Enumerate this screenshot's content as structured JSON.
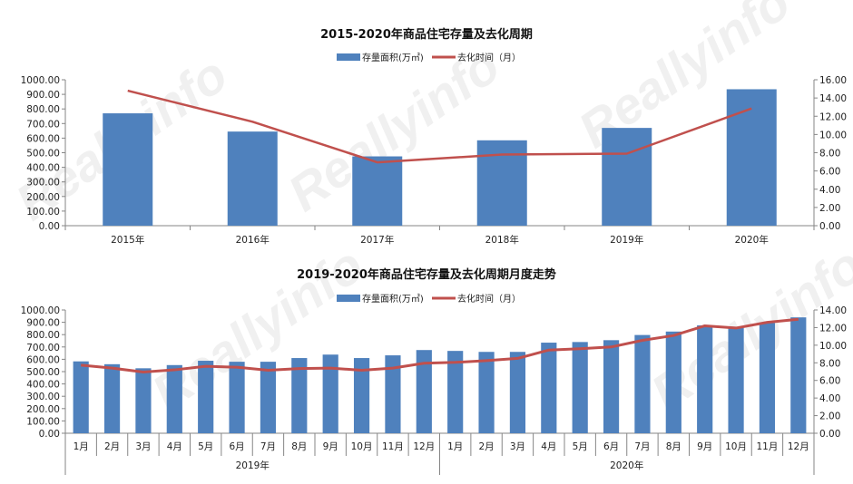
{
  "watermark": "Reallyinfo 锐理数据",
  "colors": {
    "bar": "#4F81BD",
    "line": "#C0504D",
    "axis": "#868686",
    "text": "#222222"
  },
  "chart_data": [
    {
      "type": "bar+line",
      "title": "2015-2020年商品住宅存量及去化周期",
      "legend": {
        "placement": "top-center",
        "bar_label": "存量面积(万㎡)",
        "line_label": "去化时间（月）"
      },
      "categories": [
        "2015年",
        "2016年",
        "2017年",
        "2018年",
        "2019年",
        "2020年"
      ],
      "series": [
        {
          "name": "存量面积(万㎡)",
          "type": "bar",
          "axis": "left",
          "values": [
            770,
            645,
            475,
            585,
            670,
            935
          ]
        },
        {
          "name": "去化时间（月）",
          "type": "line",
          "axis": "right",
          "values": [
            14.8,
            11.4,
            6.95,
            7.8,
            7.9,
            12.85
          ]
        }
      ],
      "left_axis": {
        "range": [
          0,
          1000
        ],
        "ticks": [
          "0.00",
          "100.00",
          "200.00",
          "300.00",
          "400.00",
          "500.00",
          "600.00",
          "700.00",
          "800.00",
          "900.00",
          "1000.00"
        ]
      },
      "right_axis": {
        "range": [
          0,
          16
        ],
        "ticks": [
          "0.00",
          "2.00",
          "4.00",
          "6.00",
          "8.00",
          "10.00",
          "12.00",
          "14.00",
          "16.00"
        ]
      },
      "grid": false
    },
    {
      "type": "bar+line",
      "title": "2019-2020年商品住宅存量及去化周期月度走势",
      "legend": {
        "placement": "top-center",
        "bar_label": "存量面积(万㎡)",
        "line_label": "去化时间（月）"
      },
      "categories": [
        "1月",
        "2月",
        "3月",
        "4月",
        "5月",
        "6月",
        "7月",
        "8月",
        "9月",
        "10月",
        "11月",
        "12月",
        "1月",
        "2月",
        "3月",
        "4月",
        "5月",
        "6月",
        "7月",
        "8月",
        "9月",
        "10月",
        "11月",
        "12月"
      ],
      "groups": [
        "2019年",
        "2020年"
      ],
      "series": [
        {
          "name": "存量面积(万㎡)",
          "type": "bar",
          "axis": "left",
          "values": [
            583,
            560,
            527,
            553,
            588,
            580,
            580,
            610,
            638,
            610,
            632,
            675,
            668,
            660,
            660,
            735,
            740,
            755,
            797,
            825,
            875,
            855,
            895,
            940
          ]
        },
        {
          "name": "去化时间（月）",
          "type": "line",
          "axis": "right",
          "values": [
            7.73,
            7.4,
            6.95,
            7.2,
            7.6,
            7.5,
            7.15,
            7.35,
            7.4,
            7.15,
            7.4,
            7.95,
            8.05,
            8.25,
            8.5,
            9.45,
            9.6,
            9.8,
            10.55,
            11.1,
            12.2,
            11.95,
            12.6,
            12.95
          ]
        }
      ],
      "left_axis": {
        "range": [
          0,
          1000
        ],
        "ticks": [
          "0.00",
          "100.00",
          "200.00",
          "300.00",
          "400.00",
          "500.00",
          "600.00",
          "700.00",
          "800.00",
          "900.00",
          "1000.00"
        ]
      },
      "right_axis": {
        "range": [
          0,
          14
        ],
        "ticks": [
          "0.00",
          "2.00",
          "4.00",
          "6.00",
          "8.00",
          "10.00",
          "12.00",
          "14.00"
        ]
      },
      "grid": false
    }
  ]
}
